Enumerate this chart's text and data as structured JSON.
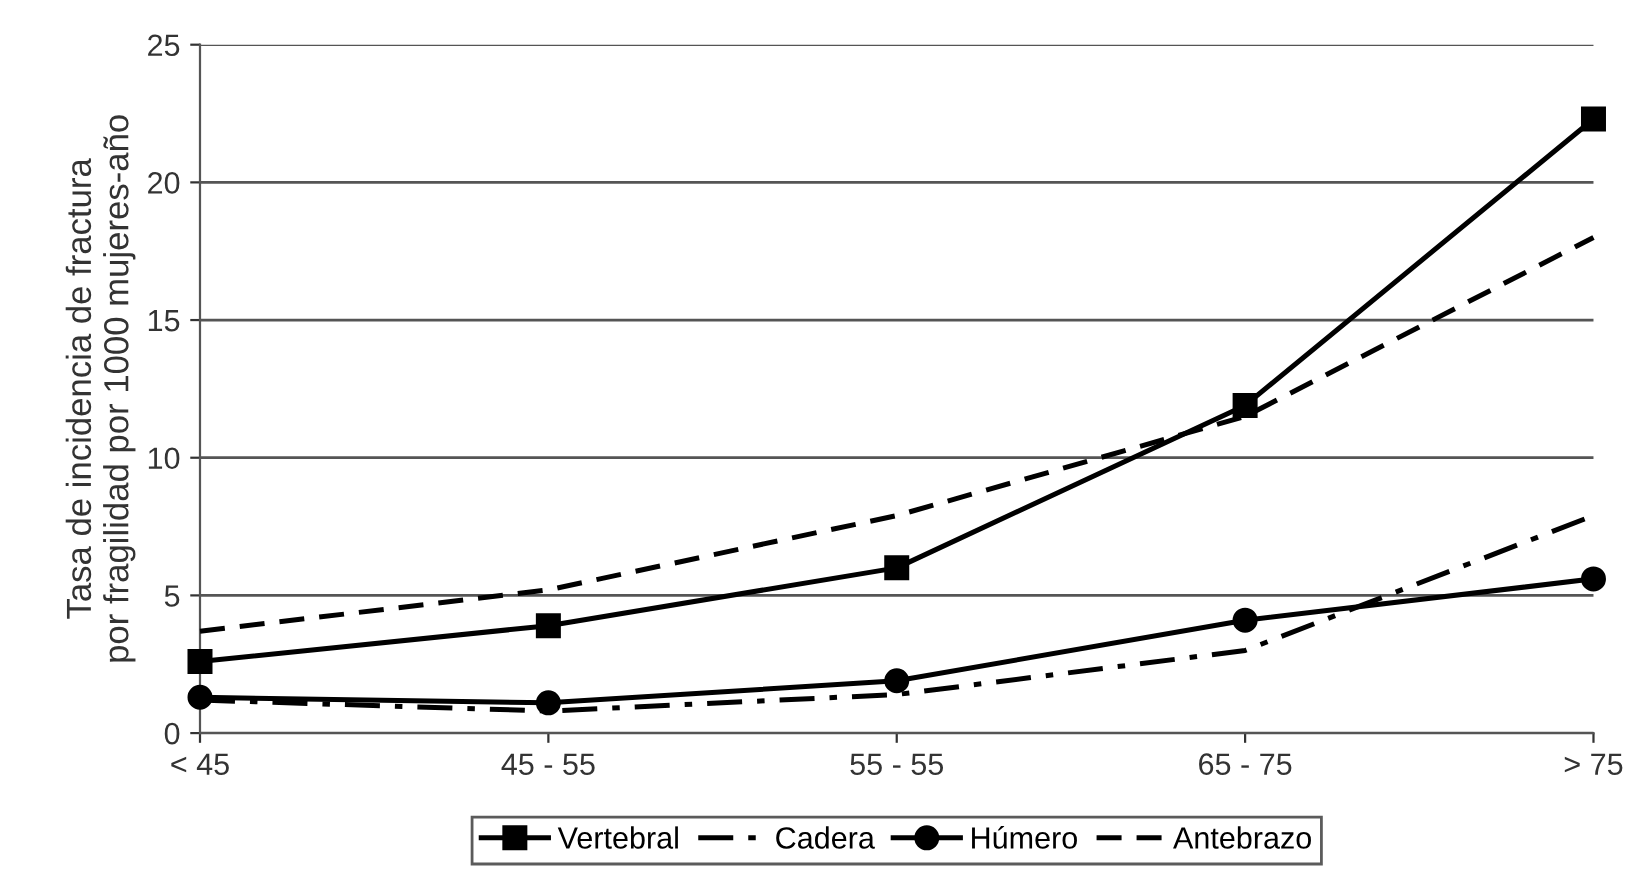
{
  "chart_data": {
    "type": "line",
    "ylabel": "Tasa de incidencia de fractura\npor fragilidad por 1000 mujeres-año",
    "categories": [
      "< 45",
      "45 - 55",
      "55 - 55",
      "65 - 75",
      "> 75"
    ],
    "series": [
      {
        "name": "Vertebral",
        "color": "#000000",
        "marker": "square",
        "line_style": "solid",
        "values": [
          2.6,
          3.9,
          6.0,
          11.9,
          22.3
        ]
      },
      {
        "name": "Cadera",
        "color": "#000000",
        "marker": "none",
        "line_style": "dashdot",
        "values": [
          1.2,
          0.8,
          1.4,
          3.0,
          7.9
        ]
      },
      {
        "name": "Húmero",
        "color": "#000000",
        "marker": "circle",
        "line_style": "solid",
        "values": [
          1.3,
          1.1,
          1.9,
          4.1,
          5.6
        ]
      },
      {
        "name": "Antebrazo",
        "color": "#000000",
        "marker": "none",
        "line_style": "dashed",
        "values": [
          3.7,
          5.2,
          7.9,
          11.5,
          18.0
        ]
      }
    ],
    "ylim": [
      0,
      25
    ],
    "yticks": [
      0,
      5,
      10,
      15,
      20,
      25
    ],
    "grid": "y",
    "legend": "bottom"
  }
}
